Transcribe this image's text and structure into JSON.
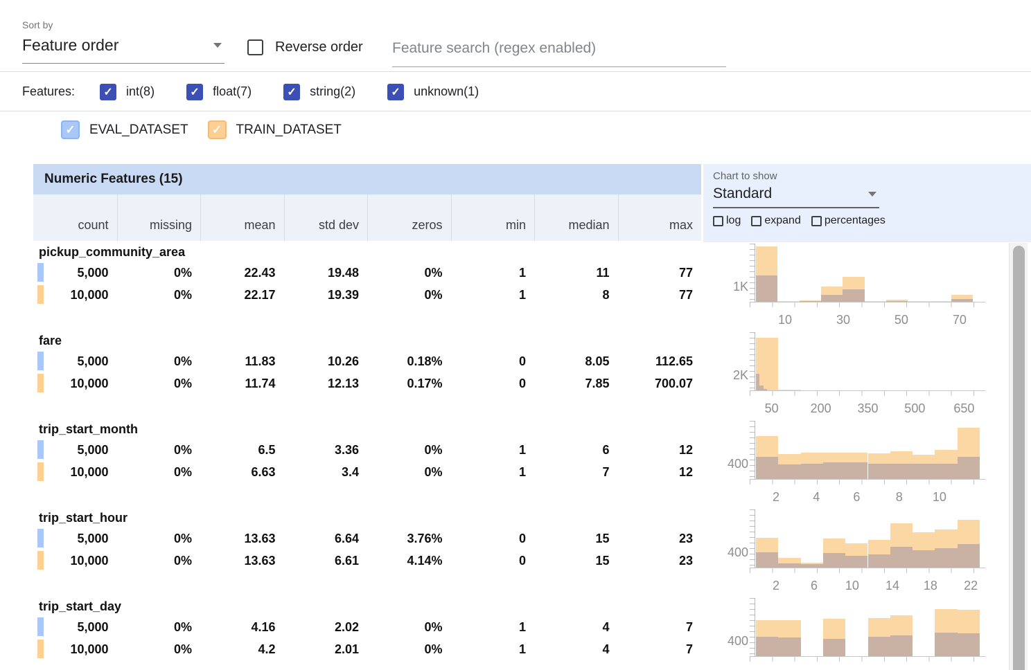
{
  "colors": {
    "eval": "#a9c8f7",
    "train": "#fbd092",
    "hist_train": "#fad7a3",
    "hist_overlap": "#c9b2a3",
    "filter_checkbox": "#3c4fb5",
    "title_bg": "#c8daf4",
    "panel_bg": "#e7f0fc",
    "col_header_bg": "#edf1f8"
  },
  "toolbar": {
    "sort_by_label": "Sort by",
    "sort_by_value": "Feature order",
    "reverse_order_label": "Reverse order",
    "search_placeholder": "Feature search (regex enabled)"
  },
  "filters": {
    "label": "Features:",
    "types": [
      {
        "label": "int(8)",
        "checked": true
      },
      {
        "label": "float(7)",
        "checked": true
      },
      {
        "label": "string(2)",
        "checked": true
      },
      {
        "label": "unknown(1)",
        "checked": true
      }
    ]
  },
  "datasets": [
    {
      "label": "EVAL_DATASET",
      "checked": true
    },
    {
      "label": "TRAIN_DATASET",
      "checked": true
    }
  ],
  "table": {
    "title": "Numeric Features (15)",
    "columns": [
      "count",
      "missing",
      "mean",
      "std dev",
      "zeros",
      "min",
      "median",
      "max"
    ],
    "chart_controls": {
      "label": "Chart to show",
      "selected": "Standard",
      "toggles": [
        "log",
        "expand",
        "percentages"
      ]
    },
    "features": [
      {
        "name": "pickup_community_area",
        "eval": [
          "5,000",
          "0%",
          "22.43",
          "19.48",
          "0%",
          "1",
          "11",
          "77"
        ],
        "train": [
          "10,000",
          "0%",
          "22.17",
          "19.39",
          "0%",
          "1",
          "8",
          "77"
        ],
        "hist": {
          "ylabel": "1K",
          "xticks": [
            {
              "label": "10",
              "pos": 13
            },
            {
              "label": "30",
              "pos": 39
            },
            {
              "label": "50",
              "pos": 65
            },
            {
              "label": "70",
              "pos": 91
            }
          ],
          "bars": [
            {
              "x": 0,
              "w": 9.7,
              "t": 100,
              "e": 47
            },
            {
              "x": 9.7,
              "w": 9.7,
              "t": 1,
              "e": 0
            },
            {
              "x": 19.4,
              "w": 9.7,
              "t": 2,
              "e": 1
            },
            {
              "x": 29.1,
              "w": 9.7,
              "t": 27,
              "e": 13
            },
            {
              "x": 38.8,
              "w": 9.7,
              "t": 45,
              "e": 22
            },
            {
              "x": 48.5,
              "w": 9.7,
              "t": 1,
              "e": 0
            },
            {
              "x": 58.2,
              "w": 9.7,
              "t": 4,
              "e": 1
            },
            {
              "x": 67.9,
              "w": 9.7,
              "t": 1,
              "e": 0
            },
            {
              "x": 77.6,
              "w": 9.7,
              "t": 1,
              "e": 0
            },
            {
              "x": 87.3,
              "w": 9.7,
              "t": 12,
              "e": 5
            }
          ]
        }
      },
      {
        "name": "fare",
        "eval": [
          "5,000",
          "0%",
          "11.83",
          "10.26",
          "0.18%",
          "0",
          "8.05",
          "112.65"
        ],
        "train": [
          "10,000",
          "0%",
          "11.74",
          "12.13",
          "0.17%",
          "0",
          "7.85",
          "700.07"
        ],
        "hist": {
          "ylabel": "2K",
          "xticks": [
            {
              "label": "50",
              "pos": 7
            },
            {
              "label": "200",
              "pos": 29
            },
            {
              "label": "350",
              "pos": 50
            },
            {
              "label": "500",
              "pos": 71
            },
            {
              "label": "650",
              "pos": 93
            }
          ],
          "bars": [
            {
              "x": 0,
              "w": 10,
              "t": 95,
              "e": 0
            },
            {
              "x": 10,
              "w": 10,
              "t": 1,
              "e": 0
            },
            {
              "x": 0,
              "w": 1.7,
              "t": 0,
              "e": 30
            },
            {
              "x": 1.7,
              "w": 1.7,
              "t": 0,
              "e": 9
            },
            {
              "x": 3.4,
              "w": 1.7,
              "t": 0,
              "e": 3
            }
          ]
        }
      },
      {
        "name": "trip_start_month",
        "eval": [
          "5,000",
          "0%",
          "6.5",
          "3.36",
          "0%",
          "1",
          "6",
          "12"
        ],
        "train": [
          "10,000",
          "0%",
          "6.63",
          "3.4",
          "0%",
          "1",
          "7",
          "12"
        ],
        "hist": {
          "ylabel": "400",
          "xticks": [
            {
              "label": "2",
              "pos": 9
            },
            {
              "label": "4",
              "pos": 27
            },
            {
              "label": "6",
              "pos": 45
            },
            {
              "label": "8",
              "pos": 64
            },
            {
              "label": "10",
              "pos": 82
            }
          ],
          "bars": [
            {
              "x": 0,
              "w": 10,
              "t": 78,
              "e": 40
            },
            {
              "x": 10,
              "w": 10,
              "t": 45,
              "e": 26
            },
            {
              "x": 20,
              "w": 10,
              "t": 48,
              "e": 27
            },
            {
              "x": 30,
              "w": 10,
              "t": 48,
              "e": 30
            },
            {
              "x": 40,
              "w": 10,
              "t": 47,
              "e": 30
            },
            {
              "x": 50,
              "w": 10,
              "t": 46,
              "e": 28
            },
            {
              "x": 60,
              "w": 10,
              "t": 50,
              "e": 28
            },
            {
              "x": 70,
              "w": 10,
              "t": 44,
              "e": 28
            },
            {
              "x": 80,
              "w": 10,
              "t": 52,
              "e": 28
            },
            {
              "x": 90,
              "w": 10,
              "t": 93,
              "e": 40
            }
          ]
        }
      },
      {
        "name": "trip_start_hour",
        "eval": [
          "5,000",
          "0%",
          "13.63",
          "6.64",
          "3.76%",
          "0",
          "15",
          "23"
        ],
        "train": [
          "10,000",
          "0%",
          "13.63",
          "6.61",
          "4.14%",
          "0",
          "15",
          "23"
        ],
        "hist": {
          "ylabel": "400",
          "xticks": [
            {
              "label": "2",
              "pos": 9
            },
            {
              "label": "6",
              "pos": 26
            },
            {
              "label": "10",
              "pos": 43
            },
            {
              "label": "14",
              "pos": 61
            },
            {
              "label": "18",
              "pos": 78
            },
            {
              "label": "22",
              "pos": 96
            }
          ],
          "bars": [
            {
              "x": 0,
              "w": 10,
              "t": 54,
              "e": 27
            },
            {
              "x": 10,
              "w": 10,
              "t": 18,
              "e": 7
            },
            {
              "x": 20,
              "w": 10,
              "t": 9,
              "e": 6
            },
            {
              "x": 30,
              "w": 10,
              "t": 53,
              "e": 26
            },
            {
              "x": 40,
              "w": 10,
              "t": 44,
              "e": 21
            },
            {
              "x": 50,
              "w": 10,
              "t": 50,
              "e": 24
            },
            {
              "x": 60,
              "w": 10,
              "t": 80,
              "e": 37
            },
            {
              "x": 70,
              "w": 10,
              "t": 64,
              "e": 31
            },
            {
              "x": 80,
              "w": 10,
              "t": 69,
              "e": 35
            },
            {
              "x": 90,
              "w": 10,
              "t": 86,
              "e": 43
            }
          ]
        }
      },
      {
        "name": "trip_start_day",
        "eval": [
          "5,000",
          "0%",
          "4.16",
          "2.02",
          "0%",
          "1",
          "4",
          "7"
        ],
        "train": [
          "10,000",
          "0%",
          "4.2",
          "2.01",
          "0%",
          "1",
          "4",
          "7"
        ],
        "hist": {
          "ylabel": "400",
          "xticks": [],
          "bars": [
            {
              "x": 0,
              "w": 10,
              "t": 65,
              "e": 35
            },
            {
              "x": 10,
              "w": 10,
              "t": 65,
              "e": 34
            },
            {
              "x": 30,
              "w": 10,
              "t": 68,
              "e": 31
            },
            {
              "x": 50,
              "w": 10,
              "t": 69,
              "e": 35
            },
            {
              "x": 60,
              "w": 10,
              "t": 74,
              "e": 38
            },
            {
              "x": 80,
              "w": 10,
              "t": 85,
              "e": 43
            },
            {
              "x": 90,
              "w": 10,
              "t": 84,
              "e": 41
            }
          ]
        }
      }
    ]
  }
}
